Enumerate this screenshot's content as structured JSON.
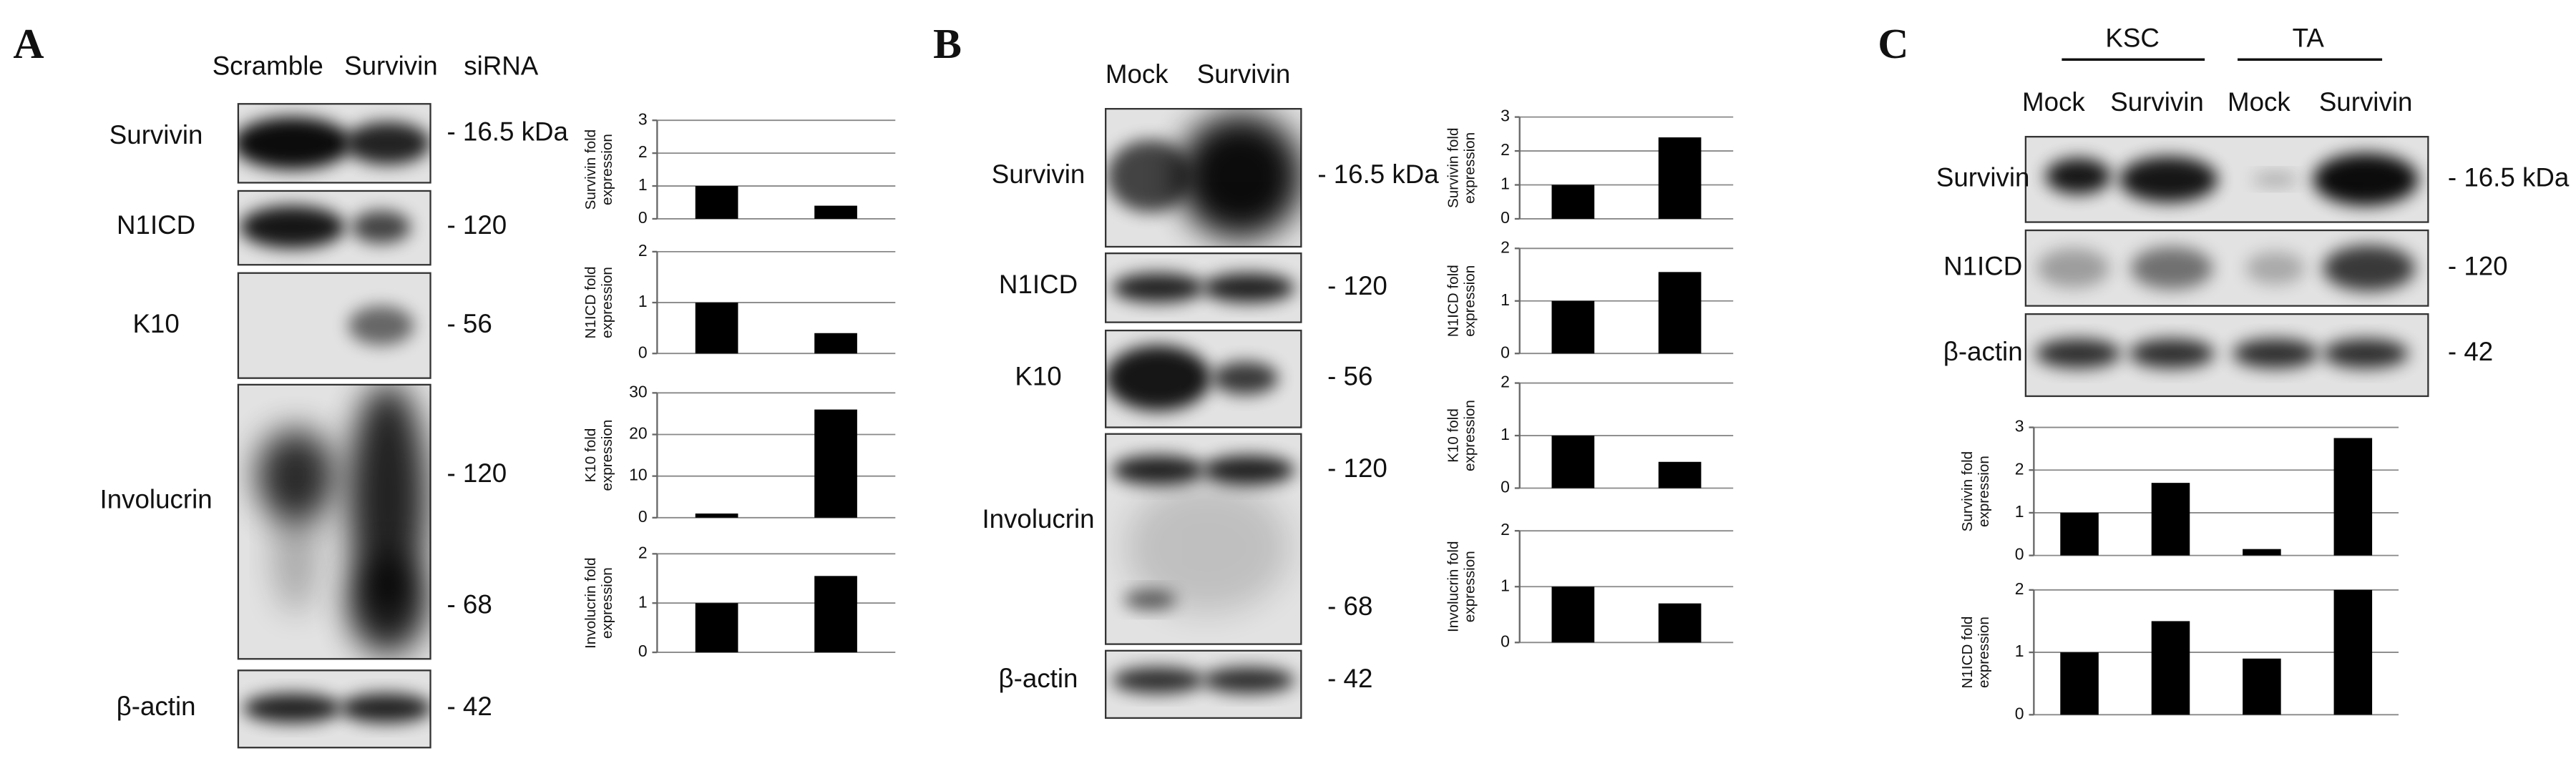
{
  "panels": [
    {
      "letter": "A",
      "lanes": [
        "Scramble",
        "Survivin",
        "siRNA"
      ],
      "rows": [
        {
          "label": "Survivin",
          "sizes": [
            "- 16.5 kDa"
          ]
        },
        {
          "label": "N1ICD",
          "sizes": [
            "- 120"
          ]
        },
        {
          "label": "K10",
          "sizes": [
            "- 56"
          ]
        },
        {
          "label": "Involucrin",
          "sizes": [
            "- 120",
            "- 68"
          ]
        },
        {
          "label": "β-actin",
          "sizes": [
            "- 42"
          ]
        }
      ]
    },
    {
      "letter": "B",
      "lanes": [
        "Mock",
        "Survivin"
      ],
      "rows": [
        {
          "label": "Survivin",
          "sizes": [
            "- 16.5 kDa"
          ]
        },
        {
          "label": "N1ICD",
          "sizes": [
            "- 120"
          ]
        },
        {
          "label": "K10",
          "sizes": [
            "- 56"
          ]
        },
        {
          "label": "Involucrin",
          "sizes": [
            "- 120",
            "- 68"
          ]
        },
        {
          "label": "β-actin",
          "sizes": [
            "- 42"
          ]
        }
      ]
    },
    {
      "letter": "C",
      "groups": [
        "KSC",
        "TA"
      ],
      "lanes": [
        "Mock",
        "Survivin",
        "Mock",
        "Survivin"
      ],
      "rows": [
        {
          "label": "Survivin",
          "sizes": [
            "- 16.5 kDa"
          ]
        },
        {
          "label": "N1ICD",
          "sizes": [
            "- 120"
          ]
        },
        {
          "label": "β-actin",
          "sizes": [
            "- 42"
          ]
        }
      ]
    }
  ],
  "chart_data": [
    {
      "type": "bar",
      "ylabel": [
        "Survivin fold",
        "expression"
      ],
      "categories": [
        null,
        null
      ],
      "values": [
        1,
        0.4
      ],
      "color": "#000000",
      "ylim": [
        0,
        3
      ],
      "yticks": [
        0,
        1,
        2,
        3
      ],
      "grid": true
    },
    {
      "type": "bar",
      "ylabel": [
        "N1ICD fold",
        "expression"
      ],
      "categories": [
        null,
        null
      ],
      "values": [
        1,
        0.4
      ],
      "color": "#000000",
      "ylim": [
        0,
        2
      ],
      "yticks": [
        0,
        1,
        2
      ],
      "grid": true
    },
    {
      "type": "bar",
      "ylabel": [
        "K10 fold",
        "expression"
      ],
      "categories": [
        null,
        null
      ],
      "values": [
        1,
        26
      ],
      "color": "#000000",
      "ylim": [
        0,
        30
      ],
      "yticks": [
        0,
        10,
        20,
        30
      ],
      "grid": true
    },
    {
      "type": "bar",
      "ylabel": [
        "Involucrin fold",
        "expression"
      ],
      "categories": [
        null,
        null
      ],
      "values": [
        1,
        1.55
      ],
      "color": "#000000",
      "ylim": [
        0,
        2
      ],
      "yticks": [
        0,
        1,
        2
      ],
      "grid": true
    },
    {
      "type": "bar",
      "ylabel": [
        "Survivin fold",
        "expression"
      ],
      "categories": [
        null,
        null
      ],
      "values": [
        1,
        2.4
      ],
      "color": "#000000",
      "ylim": [
        0,
        3
      ],
      "yticks": [
        0,
        1,
        2,
        3
      ],
      "grid": true
    },
    {
      "type": "bar",
      "ylabel": [
        "N1ICD fold",
        "expression"
      ],
      "categories": [
        null,
        null
      ],
      "values": [
        1,
        1.55
      ],
      "color": "#000000",
      "ylim": [
        0,
        2
      ],
      "yticks": [
        0,
        1,
        2
      ],
      "grid": true
    },
    {
      "type": "bar",
      "ylabel": [
        "K10 fold",
        "expression"
      ],
      "categories": [
        null,
        null
      ],
      "values": [
        1,
        0.5
      ],
      "color": "#000000",
      "ylim": [
        0,
        2
      ],
      "yticks": [
        0,
        1,
        2
      ],
      "grid": true
    },
    {
      "type": "bar",
      "ylabel": [
        "Involucrin fold",
        "expression"
      ],
      "categories": [
        null,
        null
      ],
      "values": [
        1,
        0.7
      ],
      "color": "#000000",
      "ylim": [
        0,
        2
      ],
      "yticks": [
        0,
        1,
        2
      ],
      "grid": true
    },
    {
      "type": "bar",
      "ylabel": [
        "Survivin fold",
        "expression"
      ],
      "categories": [
        null,
        null,
        null,
        null
      ],
      "values": [
        1,
        1.7,
        0.15,
        2.75
      ],
      "color": "#000000",
      "ylim": [
        0,
        3
      ],
      "yticks": [
        0,
        1,
        2,
        3
      ],
      "grid": true
    },
    {
      "type": "bar",
      "ylabel": [
        "N1ICD fold",
        "expression"
      ],
      "categories": [
        null,
        null,
        null,
        null
      ],
      "values": [
        1,
        1.5,
        0.9,
        2
      ],
      "color": "#000000",
      "ylim": [
        0,
        2
      ],
      "yticks": [
        0,
        1,
        2
      ],
      "grid": true
    }
  ]
}
